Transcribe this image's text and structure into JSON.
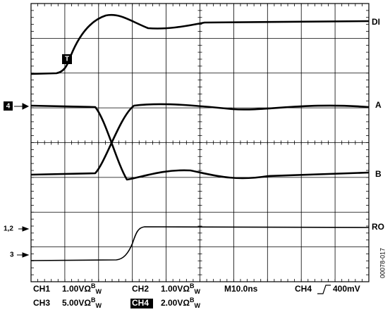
{
  "traces": {
    "di": "DI",
    "a": "A",
    "b": "B",
    "ro": "RO"
  },
  "markers": {
    "ch4": "4",
    "ch12": "1,2",
    "ch3": "3",
    "trigger": "T"
  },
  "readout": {
    "ch1": {
      "name": "CH1",
      "scale": "1.00VΩ",
      "bw1": "B",
      "bw2": "W"
    },
    "ch2": {
      "name": "CH2",
      "scale": "1.00VΩ",
      "bw1": "B",
      "bw2": "W"
    },
    "ch3": {
      "name": "CH3",
      "scale": "5.00VΩ",
      "bw1": "B",
      "bw2": "W"
    },
    "ch4": {
      "name": "CH4",
      "scale": "2.00VΩ",
      "bw1": "B",
      "bw2": "W"
    },
    "timebase": "M10.0ns",
    "trigger_source": "CH4",
    "trigger_level": "400mV"
  },
  "figure_id": "00078-017"
}
